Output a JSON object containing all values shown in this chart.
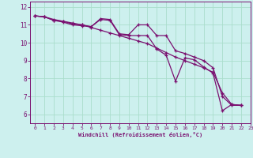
{
  "background_color": "#cdf0ee",
  "grid_color": "#aaddcc",
  "line_color": "#7a1070",
  "xlabel": "Windchill (Refroidissement éolien,°C)",
  "xlim": [
    -0.5,
    23
  ],
  "ylim": [
    5.5,
    12.3
  ],
  "yticks": [
    6,
    7,
    8,
    9,
    10,
    11,
    12
  ],
  "xticks": [
    0,
    1,
    2,
    3,
    4,
    5,
    6,
    7,
    8,
    9,
    10,
    11,
    12,
    13,
    14,
    15,
    16,
    17,
    18,
    19,
    20,
    21,
    22,
    23
  ],
  "series": [
    {
      "x": [
        0,
        1,
        2,
        3,
        4,
        5,
        6,
        7,
        8,
        9,
        10,
        11,
        12,
        13,
        14,
        15,
        16,
        17,
        18,
        19,
        20,
        21,
        22
      ],
      "y": [
        11.5,
        11.45,
        11.3,
        11.2,
        11.1,
        11.0,
        10.85,
        10.7,
        10.55,
        10.4,
        10.25,
        10.1,
        9.95,
        9.7,
        9.45,
        9.2,
        9.0,
        8.8,
        8.6,
        8.35,
        7.2,
        6.55,
        6.5
      ]
    },
    {
      "x": [
        0,
        1,
        2,
        3,
        4,
        5,
        6,
        7,
        8,
        9,
        10,
        11,
        12,
        13,
        14,
        15,
        16,
        17,
        18,
        19,
        20,
        21,
        22
      ],
      "y": [
        11.5,
        11.45,
        11.25,
        11.2,
        11.05,
        11.0,
        10.9,
        11.35,
        11.3,
        10.5,
        10.45,
        11.0,
        11.0,
        10.4,
        10.4,
        9.55,
        9.4,
        9.2,
        9.0,
        8.6,
        7.0,
        6.5,
        6.5
      ]
    },
    {
      "x": [
        0,
        1,
        2,
        3,
        4,
        5,
        6,
        7,
        8,
        9,
        10,
        11,
        12,
        13,
        14,
        15,
        16,
        17,
        18,
        19,
        20,
        21,
        22
      ],
      "y": [
        11.5,
        11.45,
        11.25,
        11.15,
        11.0,
        10.95,
        10.9,
        11.3,
        11.25,
        10.45,
        10.4,
        10.4,
        10.4,
        9.65,
        9.3,
        7.85,
        9.15,
        9.05,
        8.65,
        8.3,
        6.2,
        6.55,
        6.5
      ]
    }
  ]
}
